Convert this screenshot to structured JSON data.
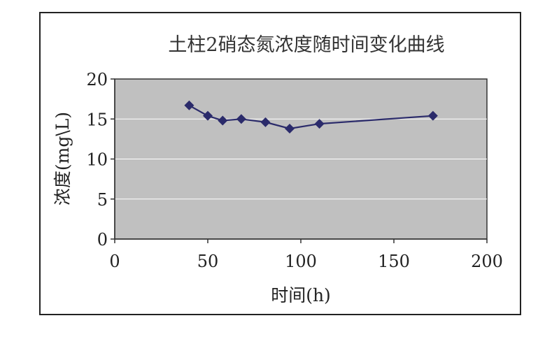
{
  "chart_data": {
    "type": "line",
    "title": "土柱2硝态氮浓度随时间变化曲线",
    "xlabel": "时间(h)",
    "ylabel": "浓度(mg\\L)",
    "xlim": [
      0,
      200
    ],
    "ylim": [
      0,
      20
    ],
    "x_ticks": [
      "0",
      "50",
      "100",
      "150",
      "200"
    ],
    "y_ticks": [
      "0",
      "5",
      "10",
      "15",
      "20"
    ],
    "grid": "horizontal",
    "legend": "none",
    "plot_background": "#c0c0c0",
    "series": [
      {
        "color": "#2b2b6b",
        "marker": "diamond",
        "x": [
          40,
          50,
          58,
          68,
          81,
          94,
          110,
          171
        ],
        "y": [
          16.7,
          15.4,
          14.8,
          15.0,
          14.6,
          13.8,
          14.4,
          15.4
        ]
      }
    ]
  }
}
